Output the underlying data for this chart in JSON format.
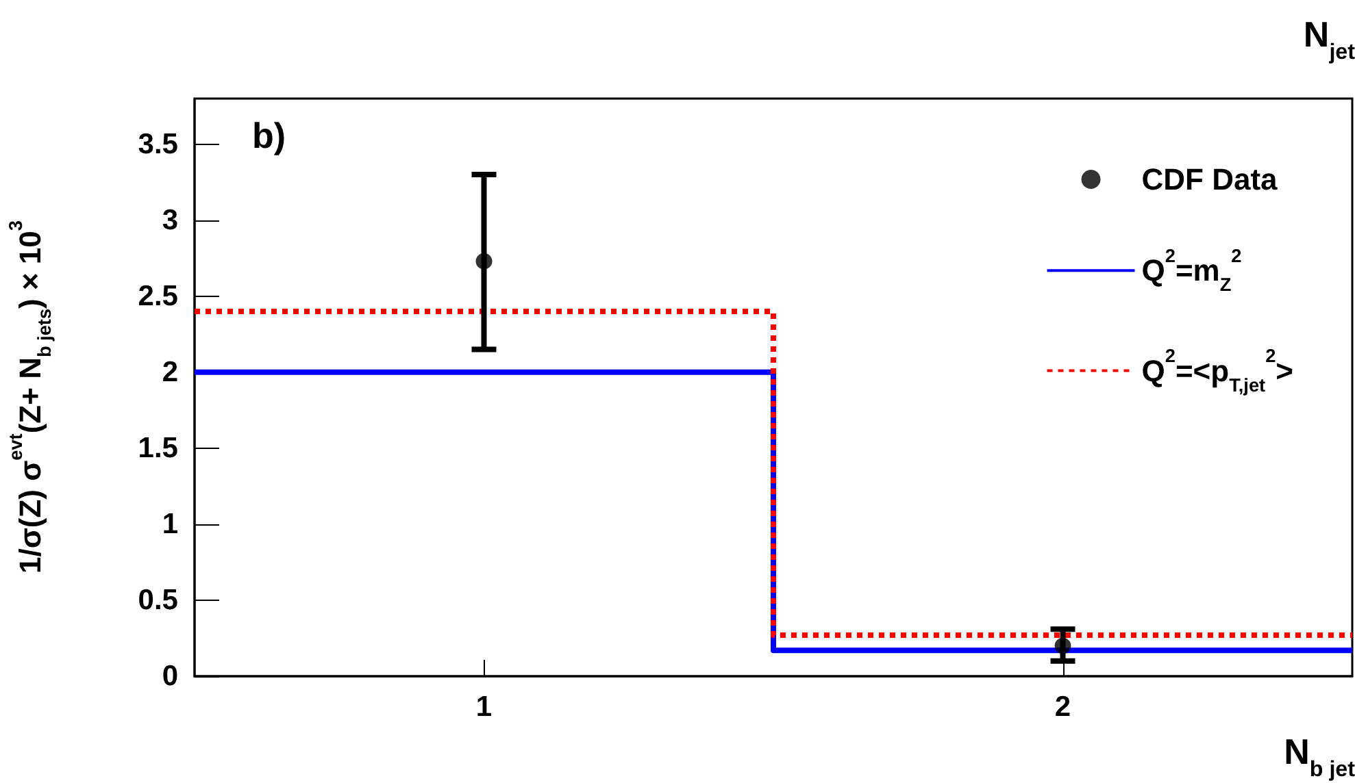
{
  "chart_data": {
    "type": "scatter",
    "xlabel": "N$_{b jet}$",
    "ylabel": "1/σ(Z) σ$^{evt}$(Z+ N$_{b jets}$) × 10$^{3}$",
    "annotations": [
      "b)",
      "N$_{jet}$"
    ],
    "x": [
      1,
      2
    ],
    "series": [
      {
        "name": "CDF Data",
        "color": "#000000",
        "marker": "circle",
        "values": [
          2.73,
          0.2
        ],
        "errors": [
          [
            2.15,
            3.3
          ],
          [
            0.1,
            0.31
          ]
        ]
      },
      {
        "name": "Q$^{2}$=m$_{Z}$$^{2}$",
        "type": "step",
        "color": "#0000ff",
        "line_style": "solid",
        "x": [
          0.5,
          1.5,
          2.5
        ],
        "values": [
          2.0,
          0.17,
          0.17
        ]
      },
      {
        "name": "Q$^{2}$=<p$_{T,jet}$$^{2}$>",
        "type": "step",
        "color": "#ff0000",
        "line_style": "dotted",
        "x": [
          0.5,
          1.5,
          2.5
        ],
        "values": [
          2.4,
          0.27,
          0.27
        ]
      }
    ],
    "xlim": [
      0.5,
      2.5
    ],
    "xticks": [
      1,
      2
    ],
    "ylim": [
      0,
      3.8
    ],
    "yticks": [
      0,
      0.5,
      1,
      1.5,
      2,
      2.5,
      3,
      3.5
    ],
    "grid": false,
    "legend": "top right"
  }
}
